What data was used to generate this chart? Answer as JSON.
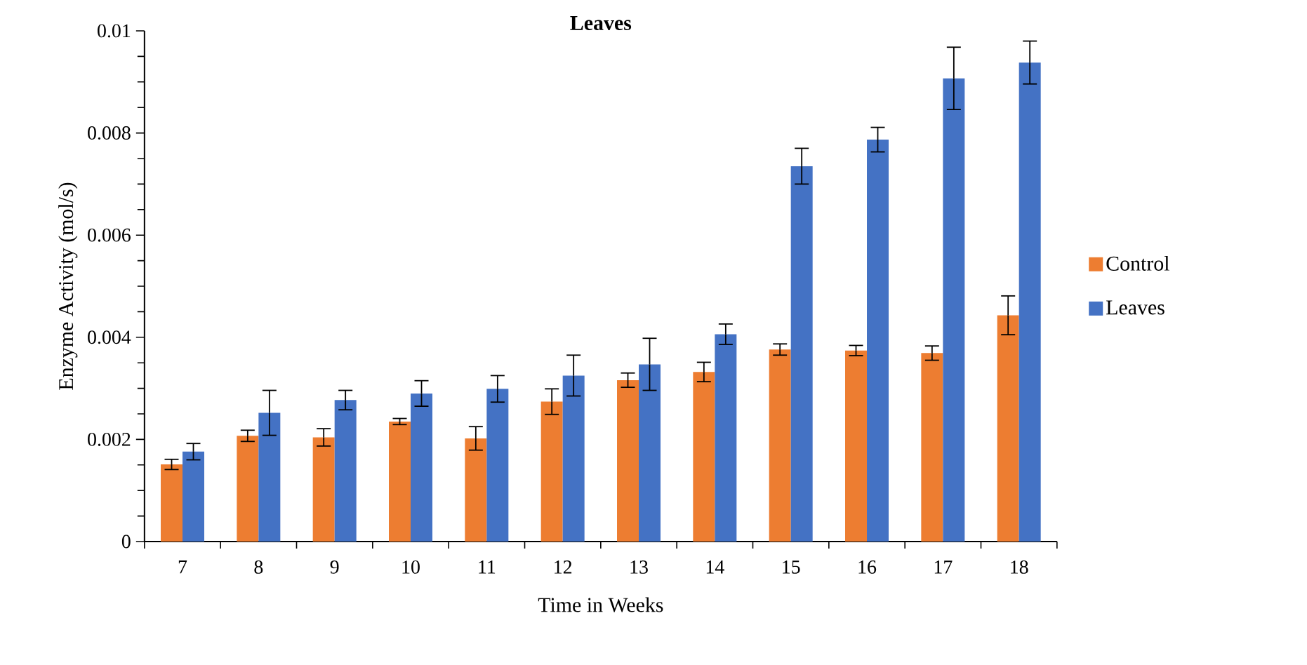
{
  "chart_data": {
    "type": "bar",
    "title": "Leaves",
    "xlabel": "Time in Weeks",
    "ylabel": "Enzyme Activity (mol/s)",
    "categories": [
      "7",
      "8",
      "9",
      "10",
      "11",
      "12",
      "13",
      "14",
      "15",
      "16",
      "17",
      "18"
    ],
    "series": [
      {
        "name": "Control",
        "color": "#ed7d31",
        "values": [
          0.00151,
          0.00207,
          0.00204,
          0.00235,
          0.00202,
          0.00274,
          0.00316,
          0.00332,
          0.00376,
          0.00374,
          0.00369,
          0.00443
        ],
        "errors": [
          0.0001,
          0.00011,
          0.00017,
          6e-05,
          0.00023,
          0.00025,
          0.00014,
          0.00019,
          0.00011,
          0.0001,
          0.00014,
          0.00038
        ]
      },
      {
        "name": "Leaves",
        "color": "#4472c4",
        "values": [
          0.00176,
          0.00252,
          0.00277,
          0.0029,
          0.00299,
          0.00325,
          0.00347,
          0.00406,
          0.00735,
          0.00787,
          0.00907,
          0.00938
        ],
        "errors": [
          0.00016,
          0.00044,
          0.00019,
          0.00025,
          0.00026,
          0.0004,
          0.00051,
          0.0002,
          0.00035,
          0.00024,
          0.00061,
          0.00042
        ]
      }
    ],
    "ylim": [
      0,
      0.01
    ],
    "yticks": [
      0,
      0.002,
      0.004,
      0.006,
      0.008,
      0.01
    ],
    "grid": false,
    "legend": "right"
  }
}
